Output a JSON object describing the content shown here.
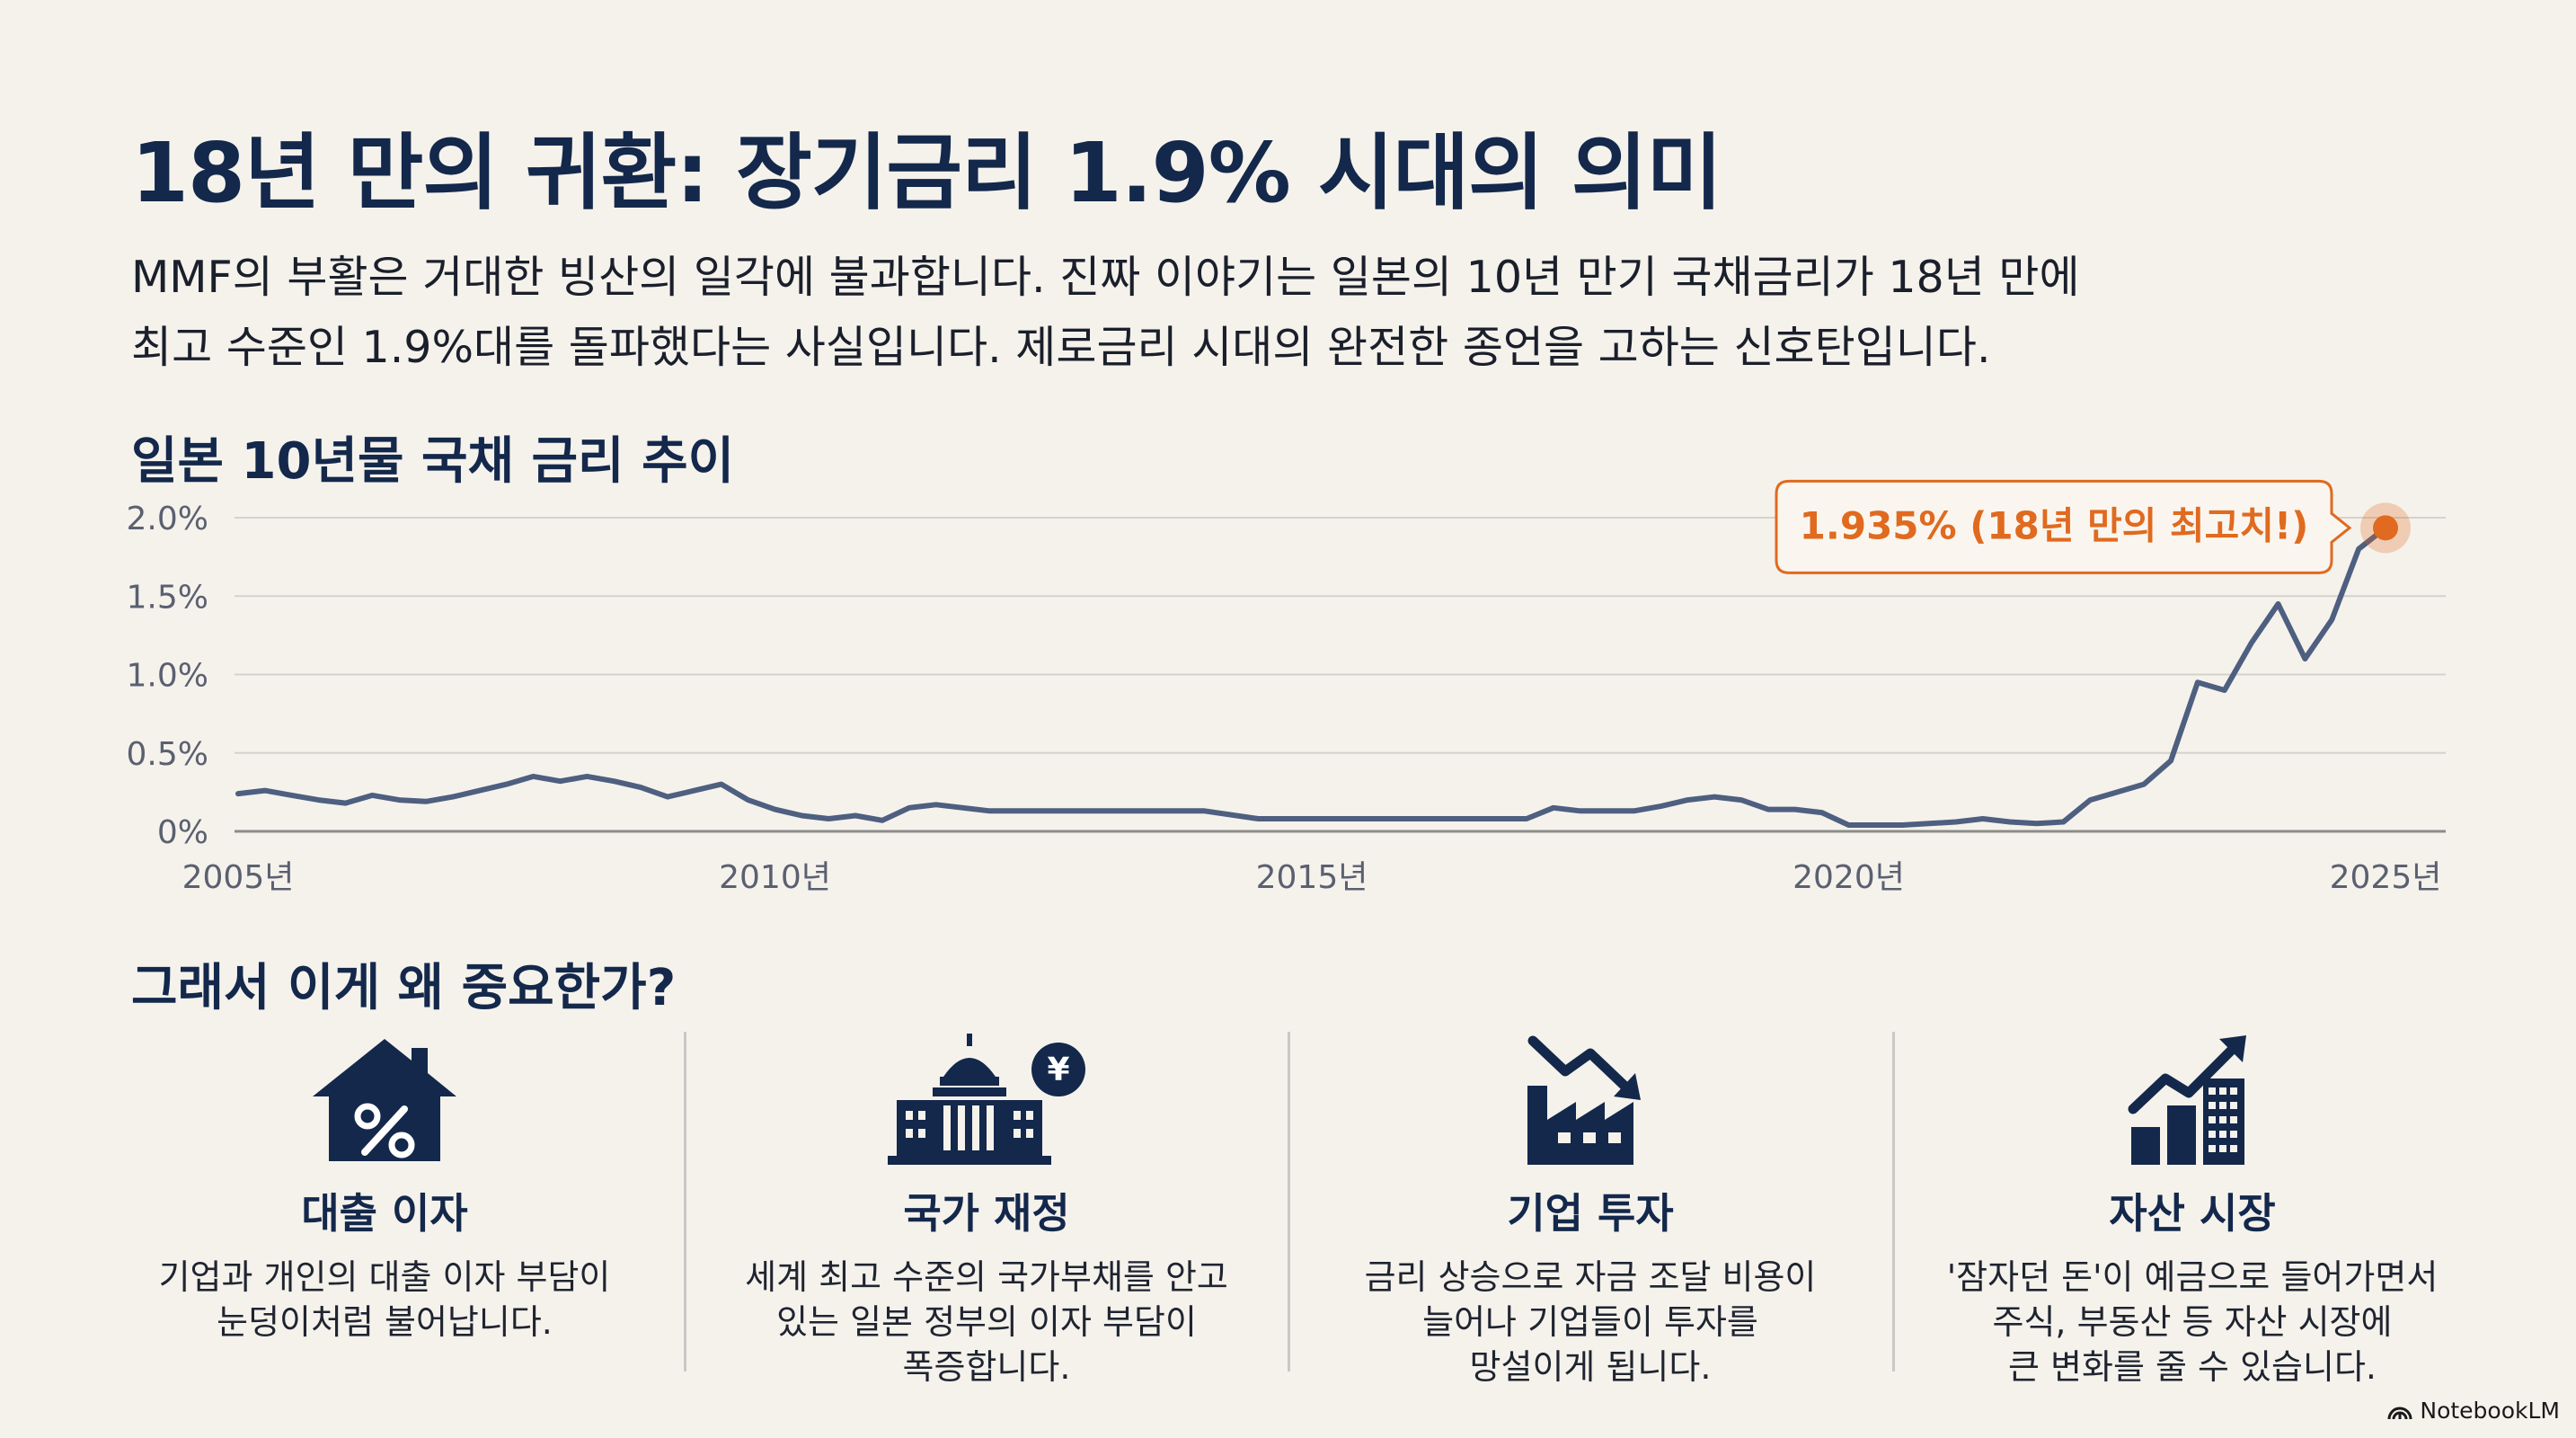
{
  "page": {
    "title": "18년 만의 귀환: 장기금리 1.9% 시대의 의미",
    "lead_lines": [
      "MMF의 부활은 거대한 빙산의 일각에 불과합니다. 진짜 이야기는 일본의 10년 만기 국채금리가 18년 만에",
      "최고 수준인 1.9%대를 돌파했다는 사실입니다. 제로금리 시대의 완전한 종언을 고하는 신호탄입니다."
    ],
    "section_title": "그래서 이게 왜 중요한가?",
    "brand": "NotebookLM"
  },
  "colors": {
    "navy": "#13284b",
    "line": "#4e5f80",
    "accent": "#e06a1f",
    "grid": "#d4d2cd",
    "text": "#1a1f2b"
  },
  "chart_data": {
    "type": "line",
    "title": "일본 10년물 국채 금리 추이",
    "xlabel": "",
    "ylabel": "",
    "xlim": [
      2005,
      2025
    ],
    "ylim": [
      0,
      2.0
    ],
    "y_ticks": [
      {
        "value": 2.0,
        "label": "2.0%"
      },
      {
        "value": 1.5,
        "label": "1.5%"
      },
      {
        "value": 1.0,
        "label": "1.0%"
      },
      {
        "value": 0.5,
        "label": "0.5%"
      },
      {
        "value": 0,
        "label": "0%"
      }
    ],
    "x_ticks": [
      {
        "value": 2005,
        "label": "2005년"
      },
      {
        "value": 2010,
        "label": "2010년"
      },
      {
        "value": 2015,
        "label": "2015년"
      },
      {
        "value": 2020,
        "label": "2020년"
      },
      {
        "value": 2025,
        "label": "2025년"
      }
    ],
    "series": [
      {
        "name": "일본 10년물 국채 금리",
        "x": [
          2005.0,
          2005.25,
          2005.5,
          2005.75,
          2006.0,
          2006.25,
          2006.5,
          2006.75,
          2007.0,
          2007.25,
          2007.5,
          2007.75,
          2008.0,
          2008.25,
          2008.5,
          2008.75,
          2009.0,
          2009.25,
          2009.5,
          2009.75,
          2010.0,
          2010.25,
          2010.5,
          2010.75,
          2011.0,
          2011.25,
          2011.5,
          2011.75,
          2012.0,
          2012.25,
          2012.5,
          2012.75,
          2013.0,
          2013.5,
          2014.0,
          2014.5,
          2015.0,
          2015.5,
          2016.0,
          2016.5,
          2017.0,
          2017.25,
          2017.5,
          2017.75,
          2018.0,
          2018.25,
          2018.5,
          2018.75,
          2019.0,
          2019.25,
          2019.5,
          2019.75,
          2020.0,
          2020.25,
          2020.5,
          2020.75,
          2021.0,
          2021.25,
          2021.5,
          2021.75,
          2022.0,
          2022.25,
          2022.5,
          2022.75,
          2023.0,
          2023.25,
          2023.5,
          2023.75,
          2024.0,
          2024.25,
          2024.5,
          2024.75,
          2025.0
        ],
        "values": [
          0.24,
          0.26,
          0.23,
          0.2,
          0.18,
          0.23,
          0.2,
          0.19,
          0.22,
          0.26,
          0.3,
          0.35,
          0.32,
          0.35,
          0.32,
          0.28,
          0.22,
          0.26,
          0.3,
          0.2,
          0.14,
          0.1,
          0.08,
          0.1,
          0.07,
          0.15,
          0.17,
          0.15,
          0.13,
          0.13,
          0.13,
          0.13,
          0.13,
          0.13,
          0.13,
          0.08,
          0.08,
          0.08,
          0.08,
          0.08,
          0.08,
          0.15,
          0.13,
          0.13,
          0.13,
          0.16,
          0.2,
          0.22,
          0.2,
          0.14,
          0.14,
          0.12,
          0.04,
          0.04,
          0.04,
          0.05,
          0.06,
          0.08,
          0.06,
          0.05,
          0.06,
          0.2,
          0.25,
          0.3,
          0.45,
          0.95,
          0.9,
          1.2,
          1.45,
          1.1,
          1.35,
          1.8,
          1.935
        ]
      }
    ],
    "annotation": {
      "label": "1.935% (18년 만의 최고치!)",
      "x": 2025.0,
      "y": 1.935
    }
  },
  "cards": [
    {
      "icon": "house-percent-icon",
      "title": "대출 이자",
      "desc_lines": [
        "기업과 개인의 대출 이자 부담이",
        "눈덩이처럼 불어납니다."
      ]
    },
    {
      "icon": "government-building-yen-icon",
      "title": "국가 재정",
      "desc_lines": [
        "세계 최고 수준의 국가부채를 안고",
        "있는 일본 정부의 이자 부담이",
        "폭증합니다."
      ]
    },
    {
      "icon": "factory-downtrend-icon",
      "title": "기업 투자",
      "desc_lines": [
        "금리 상승으로 자금 조달 비용이",
        "늘어나 기업들이 투자를",
        "망설이게 됩니다."
      ]
    },
    {
      "icon": "asset-growth-icon",
      "title": "자산 시장",
      "desc_lines": [
        "'잠자던 돈'이 예금으로 들어가면서",
        "주식, 부동산 등 자산 시장에",
        "큰 변화를 줄 수 있습니다."
      ]
    }
  ]
}
